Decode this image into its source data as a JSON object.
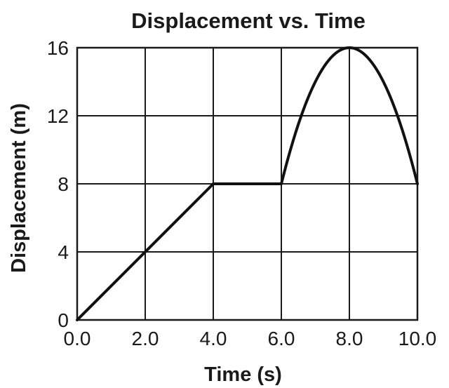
{
  "chart_data": {
    "type": "line",
    "title": "Displacement vs. Time",
    "xlabel": "Time (s)",
    "ylabel": "Displacement (m)",
    "xlim": [
      0,
      10
    ],
    "ylim": [
      0,
      16
    ],
    "x_ticks": [
      0,
      2,
      4,
      6,
      8,
      10
    ],
    "x_tick_labels": [
      "0.0",
      "2.0",
      "4.0",
      "6.0",
      "8.0",
      "10.0"
    ],
    "y_ticks": [
      0,
      4,
      8,
      12,
      16
    ],
    "y_tick_labels": [
      "0",
      "4",
      "8",
      "12",
      "16"
    ],
    "grid": true,
    "series": [
      {
        "segments": [
          {
            "kind": "linear",
            "points": [
              [
                0,
                0
              ],
              [
                4,
                8
              ]
            ]
          },
          {
            "kind": "linear",
            "points": [
              [
                4,
                8
              ],
              [
                6,
                8
              ]
            ]
          },
          {
            "kind": "parabola",
            "from": [
              6,
              8
            ],
            "vertex": [
              8,
              16
            ],
            "to": [
              10,
              8
            ]
          }
        ]
      }
    ],
    "colors": {
      "line": "#111111",
      "grid": "#1a1a1a",
      "text": "#1a1a1a"
    }
  }
}
